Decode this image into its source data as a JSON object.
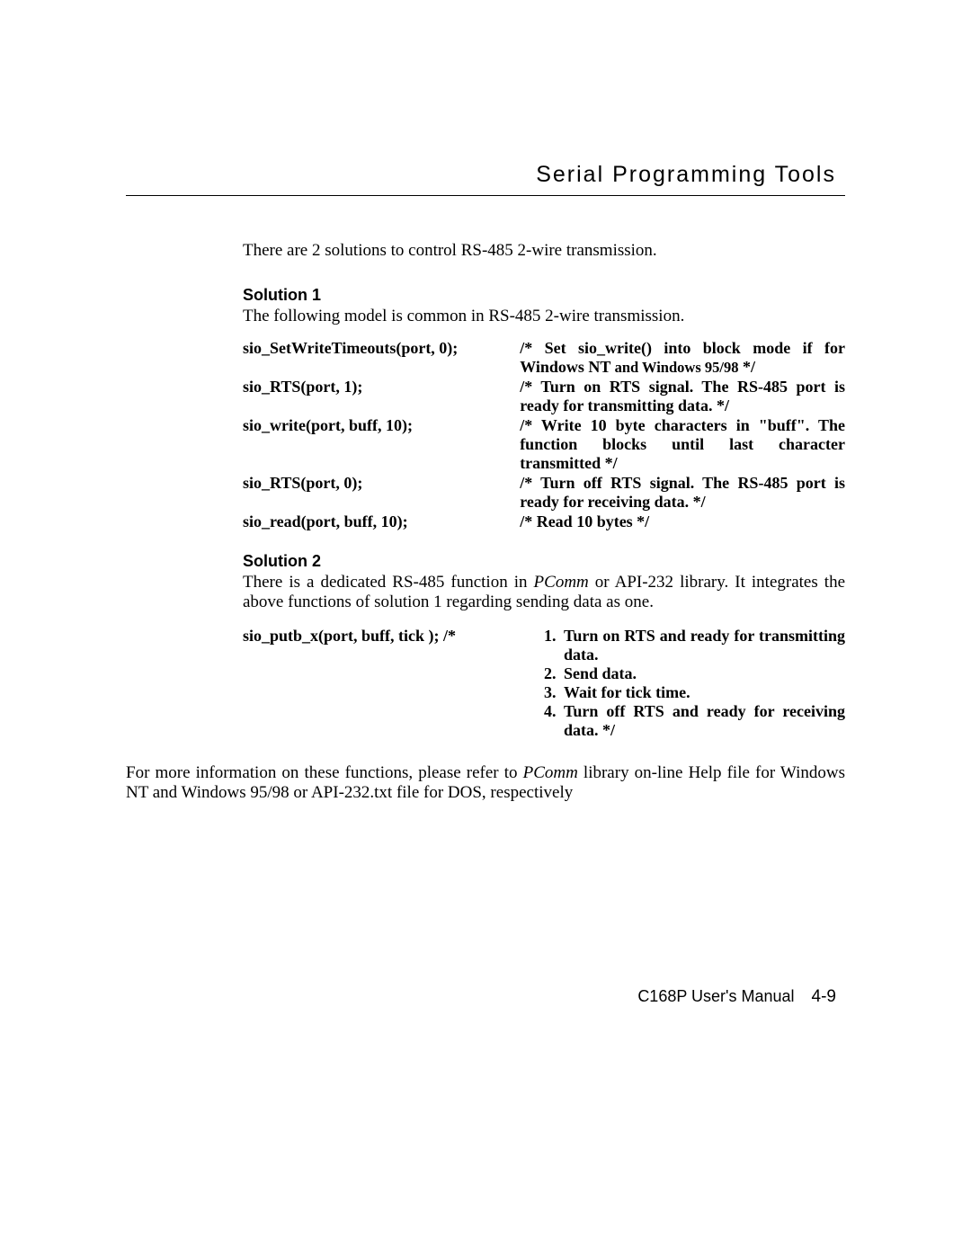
{
  "header": {
    "title": "Serial Programming Tools"
  },
  "intro": "There are 2 solutions to control RS-485 2-wire transmission.",
  "solution1": {
    "heading": "Solution 1",
    "intro": "The following model is common in RS-485 2-wire transmission.",
    "rows": [
      {
        "code": "sio_SetWriteTimeouts(port, 0);",
        "comment_html": "/* Set sio_write() into block mode if for Windows NT <span class=\"smaller\">and Windows 95/98</span> */"
      },
      {
        "code": "sio_RTS(port, 1);",
        "comment_html": "/* Turn on RTS signal. The RS-485 port is ready for transmitting data. */"
      },
      {
        "code": "sio_write(port, buff, 10);",
        "comment_html": "/* Write 10 byte characters in \"buff\". The function blocks until last character transmitted */"
      },
      {
        "code": "sio_RTS(port, 0);",
        "comment_html": "/* Turn off RTS signal. The RS-485 port is ready for receiving data. */"
      },
      {
        "code": "sio_read(port, buff, 10);",
        "comment_html": "/* Read 10 bytes */"
      }
    ]
  },
  "solution2": {
    "heading": "Solution 2",
    "intro_pre": "There is a dedicated RS-485 function in ",
    "intro_em": "PComm",
    "intro_post": " or API-232 library. It integrates the above functions of solution 1 regarding sending data as one.",
    "code": "sio_putb_x(port, buff, tick ); /*",
    "steps": [
      {
        "n": "1.",
        "t_html": "<span class=\"justify-line\">Turn on RTS and ready for</span> transmitting data."
      },
      {
        "n": "2.",
        "t_html": "Send data."
      },
      {
        "n": "3.",
        "t_html": "Wait for tick time."
      },
      {
        "n": "4.",
        "t_html": "<span class=\"justify-line\">Turn off RTS and ready for</span> receiving data. */"
      }
    ]
  },
  "closing_pre": "For more information on these functions, please refer to ",
  "closing_em": "PComm",
  "closing_post": " library on-line Help file for Windows NT and Windows 95/98 or API-232.txt file for DOS, respectively",
  "footer": {
    "manual": "C168P User's Manual",
    "page": "4-9"
  }
}
